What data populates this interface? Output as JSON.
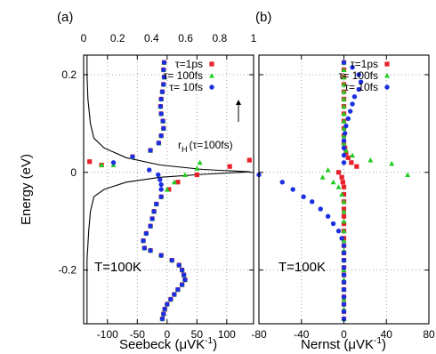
{
  "chart_data": [
    {
      "type": "scatter",
      "panel_label": "(a)",
      "xlabel_main": "Seebeck (",
      "xlabel_unit_mu": "μ",
      "xlabel_unit_rest": "VK",
      "xlabel_exp": "-1",
      "xlabel_close": ")",
      "ylabel": "Energy (eV)",
      "xlim": [
        -140,
        145
      ],
      "ylim": [
        -0.31,
        0.24
      ],
      "xticks": [
        -100,
        -50,
        0,
        50,
        100
      ],
      "xtick_labels": [
        "-100",
        "-50",
        "0",
        "50",
        "100"
      ],
      "yticks": [
        -0.2,
        0,
        0.2
      ],
      "ytick_labels": [
        "-0.2",
        "0",
        "0.2"
      ],
      "top_axis": {
        "xlim": [
          0,
          1
        ],
        "ticks": [
          0,
          0.2,
          0.4,
          0.6,
          0.8,
          1
        ],
        "labels": [
          "0",
          "0.2",
          "0.4",
          "0.6",
          "0.8",
          "1"
        ]
      },
      "grid": true,
      "legend_position": "top-right",
      "temperature_label": "T=100K",
      "annotation": {
        "r": "r",
        "sub": "H",
        "rest": "(τ=100fs)"
      },
      "series": [
        {
          "name": "τ=1ps",
          "color": "#e8202a",
          "marker": "square",
          "points": [
            [
              -5,
              0.225
            ],
            [
              -6,
              0.21
            ],
            [
              -5,
              0.195
            ],
            [
              -6,
              0.18
            ],
            [
              -8,
              0.165
            ],
            [
              -10,
              0.15
            ],
            [
              -11,
              0.135
            ],
            [
              -10,
              0.12
            ],
            [
              -7,
              0.105
            ],
            [
              -6,
              0.09
            ],
            [
              -10,
              0.075
            ],
            [
              -14,
              0.06
            ],
            [
              -28,
              0.045
            ],
            [
              -58,
              0.032
            ],
            [
              -110,
              0.015
            ],
            [
              -130,
              0.022
            ],
            [
              138,
              0.025
            ],
            [
              105,
              0.012
            ],
            [
              50,
              -0.005
            ],
            [
              18,
              -0.02
            ],
            [
              3,
              -0.035
            ],
            [
              -10,
              -0.05
            ],
            [
              -18,
              -0.065
            ],
            [
              -22,
              -0.08
            ],
            [
              -25,
              -0.095
            ],
            [
              -28,
              -0.11
            ],
            [
              -35,
              -0.125
            ],
            [
              -40,
              -0.14
            ],
            [
              -38,
              -0.155
            ],
            [
              -28,
              -0.16
            ],
            [
              -10,
              -0.17
            ],
            [
              8,
              -0.18
            ],
            [
              20,
              -0.19
            ],
            [
              25,
              -0.2
            ],
            [
              28,
              -0.21
            ],
            [
              30,
              -0.22
            ],
            [
              25,
              -0.23
            ],
            [
              18,
              -0.24
            ],
            [
              12,
              -0.25
            ],
            [
              6,
              -0.26
            ],
            [
              0,
              -0.27
            ],
            [
              -4,
              -0.28
            ],
            [
              -6,
              -0.29
            ],
            [
              -8,
              -0.3
            ]
          ]
        },
        {
          "name": "τ= 100fs",
          "color": "#22cc22",
          "marker": "triangle",
          "points": [
            [
              -5,
              0.225
            ],
            [
              -6,
              0.21
            ],
            [
              -5,
              0.195
            ],
            [
              -6,
              0.18
            ],
            [
              -8,
              0.165
            ],
            [
              -10,
              0.15
            ],
            [
              -11,
              0.135
            ],
            [
              -10,
              0.12
            ],
            [
              -7,
              0.105
            ],
            [
              -6,
              0.09
            ],
            [
              -10,
              0.075
            ],
            [
              -14,
              0.06
            ],
            [
              -28,
              0.045
            ],
            [
              -58,
              0.032
            ],
            [
              -110,
              0.015
            ],
            [
              -90,
              0.015
            ],
            [
              55,
              0.02
            ],
            [
              50,
              0.008
            ],
            [
              30,
              -0.005
            ],
            [
              12,
              -0.02
            ],
            [
              0,
              -0.035
            ],
            [
              -10,
              -0.05
            ],
            [
              -18,
              -0.065
            ],
            [
              -22,
              -0.08
            ],
            [
              -25,
              -0.095
            ],
            [
              -28,
              -0.11
            ],
            [
              -35,
              -0.125
            ],
            [
              -40,
              -0.14
            ],
            [
              -38,
              -0.155
            ],
            [
              -28,
              -0.16
            ],
            [
              -10,
              -0.17
            ],
            [
              8,
              -0.18
            ],
            [
              20,
              -0.19
            ],
            [
              25,
              -0.2
            ],
            [
              28,
              -0.21
            ],
            [
              30,
              -0.22
            ],
            [
              25,
              -0.23
            ],
            [
              18,
              -0.24
            ],
            [
              12,
              -0.25
            ],
            [
              6,
              -0.26
            ],
            [
              0,
              -0.27
            ],
            [
              -4,
              -0.28
            ],
            [
              -6,
              -0.29
            ],
            [
              -8,
              -0.3
            ]
          ]
        },
        {
          "name": "τ=  10fs",
          "color": "#1a2fe0",
          "marker": "circle",
          "points": [
            [
              -5,
              0.225
            ],
            [
              -6,
              0.21
            ],
            [
              -5,
              0.195
            ],
            [
              -6,
              0.18
            ],
            [
              -8,
              0.165
            ],
            [
              -10,
              0.15
            ],
            [
              -11,
              0.135
            ],
            [
              -10,
              0.12
            ],
            [
              -7,
              0.105
            ],
            [
              -6,
              0.09
            ],
            [
              -10,
              0.075
            ],
            [
              -14,
              0.06
            ],
            [
              -28,
              0.045
            ],
            [
              -58,
              0.032
            ],
            [
              -90,
              0.02
            ],
            [
              -30,
              0.005
            ],
            [
              -15,
              -0.005
            ],
            [
              -12,
              -0.015
            ],
            [
              -10,
              -0.025
            ],
            [
              -10,
              -0.035
            ],
            [
              -10,
              -0.05
            ],
            [
              -18,
              -0.065
            ],
            [
              -22,
              -0.08
            ],
            [
              -25,
              -0.095
            ],
            [
              -28,
              -0.11
            ],
            [
              -35,
              -0.125
            ],
            [
              -40,
              -0.14
            ],
            [
              -38,
              -0.155
            ],
            [
              -28,
              -0.16
            ],
            [
              -10,
              -0.17
            ],
            [
              8,
              -0.18
            ],
            [
              20,
              -0.19
            ],
            [
              25,
              -0.2
            ],
            [
              28,
              -0.21
            ],
            [
              30,
              -0.22
            ],
            [
              25,
              -0.23
            ],
            [
              18,
              -0.24
            ],
            [
              12,
              -0.25
            ],
            [
              6,
              -0.26
            ],
            [
              0,
              -0.27
            ],
            [
              -4,
              -0.28
            ],
            [
              -6,
              -0.29
            ],
            [
              -8,
              -0.3
            ]
          ]
        }
      ],
      "rH_curve": [
        [
          0.02,
          0.24
        ],
        [
          0.02,
          0.2
        ],
        [
          0.025,
          0.15
        ],
        [
          0.04,
          0.1
        ],
        [
          0.06,
          0.07
        ],
        [
          0.12,
          0.05
        ],
        [
          0.25,
          0.03
        ],
        [
          0.45,
          0.015
        ],
        [
          0.7,
          0.006
        ],
        [
          0.98,
          0.001
        ],
        [
          0.7,
          -0.004
        ],
        [
          0.45,
          -0.01
        ],
        [
          0.25,
          -0.02
        ],
        [
          0.12,
          -0.035
        ],
        [
          0.06,
          -0.05
        ],
        [
          0.04,
          -0.08
        ],
        [
          0.03,
          -0.12
        ],
        [
          0.02,
          -0.18
        ],
        [
          0.02,
          -0.24
        ],
        [
          0.02,
          -0.31
        ]
      ]
    },
    {
      "type": "scatter",
      "panel_label": "(b)",
      "xlabel_main": "Nernst (",
      "xlabel_unit_mu": "μ",
      "xlabel_unit_rest": "VK",
      "xlabel_exp": "-1",
      "xlabel_close": ")",
      "xlim": [
        -80,
        80
      ],
      "ylim": [
        -0.31,
        0.24
      ],
      "xticks": [
        -80,
        -40,
        0,
        40,
        80
      ],
      "xtick_labels": [
        "-80",
        "-40",
        "0",
        "40",
        "80"
      ],
      "yticks": [
        -0.2,
        0,
        0.2
      ],
      "grid": true,
      "legend_position": "top-right",
      "temperature_label": "T=100K",
      "series": [
        {
          "name": "τ=1ps",
          "color": "#e8202a",
          "marker": "square",
          "points": [
            [
              0,
              0.225
            ],
            [
              0,
              0.21
            ],
            [
              0,
              0.195
            ],
            [
              0,
              0.18
            ],
            [
              0,
              0.165
            ],
            [
              0,
              0.15
            ],
            [
              0,
              0.135
            ],
            [
              0,
              0.12
            ],
            [
              0,
              0.105
            ],
            [
              0,
              0.09
            ],
            [
              0,
              0.075
            ],
            [
              0,
              0.06
            ],
            [
              1,
              0.05
            ],
            [
              2,
              0.04
            ],
            [
              4,
              0.03
            ],
            [
              7,
              0.02
            ],
            [
              12,
              0.012
            ],
            [
              -5,
              0.0
            ],
            [
              -2,
              -0.01
            ],
            [
              -1,
              -0.02
            ],
            [
              0,
              -0.03
            ],
            [
              0,
              -0.045
            ],
            [
              0,
              -0.06
            ],
            [
              0,
              -0.075
            ],
            [
              0,
              -0.09
            ],
            [
              0,
              -0.105
            ],
            [
              0,
              -0.12
            ],
            [
              0,
              -0.135
            ],
            [
              0,
              -0.15
            ],
            [
              0,
              -0.165
            ],
            [
              0,
              -0.18
            ],
            [
              0,
              -0.195
            ],
            [
              0,
              -0.21
            ],
            [
              0,
              -0.225
            ],
            [
              0,
              -0.24
            ],
            [
              0,
              -0.255
            ],
            [
              0,
              -0.27
            ],
            [
              0,
              -0.285
            ],
            [
              0,
              -0.3
            ]
          ]
        },
        {
          "name": "τ= 100fs",
          "color": "#22cc22",
          "marker": "triangle",
          "points": [
            [
              0,
              0.225
            ],
            [
              0,
              0.21
            ],
            [
              0,
              0.195
            ],
            [
              0,
              0.18
            ],
            [
              0,
              0.165
            ],
            [
              0,
              0.15
            ],
            [
              0,
              0.135
            ],
            [
              0,
              0.12
            ],
            [
              0,
              0.105
            ],
            [
              0,
              0.09
            ],
            [
              0,
              0.075
            ],
            [
              0,
              0.06
            ],
            [
              2,
              0.045
            ],
            [
              8,
              0.035
            ],
            [
              25,
              0.025
            ],
            [
              45,
              0.018
            ],
            [
              60,
              -0.005
            ],
            [
              -15,
              0.005
            ],
            [
              -20,
              -0.01
            ],
            [
              -10,
              -0.02
            ],
            [
              -5,
              -0.03
            ],
            [
              -2,
              -0.045
            ],
            [
              0,
              -0.06
            ],
            [
              0,
              -0.08
            ],
            [
              0,
              -0.1
            ],
            [
              0,
              -0.12
            ],
            [
              0,
              -0.14
            ],
            [
              0,
              -0.16
            ],
            [
              0,
              -0.18
            ],
            [
              0,
              -0.2
            ],
            [
              0,
              -0.22
            ],
            [
              0,
              -0.24
            ],
            [
              0,
              -0.26
            ],
            [
              0,
              -0.28
            ],
            [
              0,
              -0.3
            ]
          ]
        },
        {
          "name": "τ=  10fs",
          "color": "#1a2fe0",
          "marker": "circle",
          "points": [
            [
              0,
              0.225
            ],
            [
              8,
              0.215
            ],
            [
              14,
              0.2
            ],
            [
              16,
              0.185
            ],
            [
              14,
              0.17
            ],
            [
              10,
              0.155
            ],
            [
              8,
              0.14
            ],
            [
              6,
              0.125
            ],
            [
              4,
              0.11
            ],
            [
              2,
              0.095
            ],
            [
              1,
              0.08
            ],
            [
              0,
              0.065
            ],
            [
              0,
              0.05
            ],
            [
              0,
              0.035
            ],
            [
              0,
              0.02
            ],
            [
              -80,
              -0.005
            ],
            [
              -58,
              -0.02
            ],
            [
              -48,
              -0.035
            ],
            [
              -38,
              -0.05
            ],
            [
              -30,
              -0.06
            ],
            [
              -22,
              -0.075
            ],
            [
              -15,
              -0.09
            ],
            [
              -10,
              -0.105
            ],
            [
              -5,
              -0.12
            ],
            [
              -2,
              -0.135
            ],
            [
              0,
              -0.15
            ],
            [
              0,
              -0.165
            ],
            [
              0,
              -0.18
            ],
            [
              0,
              -0.195
            ],
            [
              0,
              -0.21
            ],
            [
              0,
              -0.225
            ],
            [
              0,
              -0.24
            ],
            [
              0,
              -0.255
            ],
            [
              0,
              -0.27
            ],
            [
              0,
              -0.285
            ],
            [
              0,
              -0.3
            ]
          ]
        }
      ]
    }
  ]
}
